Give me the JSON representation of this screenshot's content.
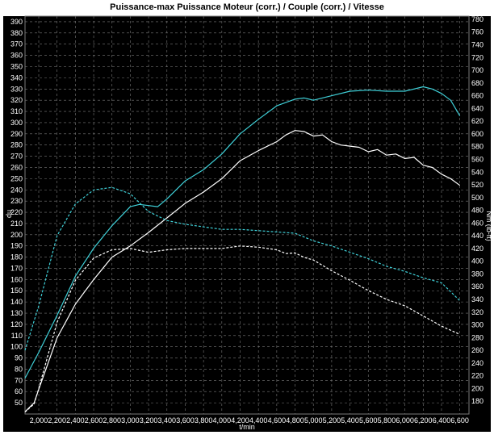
{
  "chart_data": {
    "type": "line",
    "title": "Puissance-max Puissance Moteur (corr.) / Couple (corr.) / Vitesse",
    "xlabel": "t/min",
    "ylabel_left": "hp",
    "ylabel_right": "Nm (lb-ft)",
    "xlim": [
      1850,
      6700
    ],
    "ylim_left": [
      40,
      395
    ],
    "ylim_right": [
      160,
      785
    ],
    "x_ticks": [
      "2,000",
      "2,200",
      "2,400",
      "2,600",
      "2,800",
      "3,000",
      "3,200",
      "3,400",
      "3,600",
      "3,800",
      "4,000",
      "4,200",
      "4,400",
      "4,600",
      "4,800",
      "5,000",
      "5,200",
      "5,400",
      "5,600",
      "5,800",
      "6,000",
      "6,200",
      "6,400",
      "6,600"
    ],
    "y_ticks_left": [
      50,
      60,
      70,
      80,
      90,
      100,
      110,
      120,
      130,
      140,
      150,
      160,
      170,
      180,
      190,
      200,
      210,
      220,
      230,
      240,
      250,
      260,
      270,
      280,
      290,
      300,
      310,
      320,
      330,
      340,
      350,
      360,
      370,
      380,
      390
    ],
    "y_ticks_right": [
      180,
      200,
      220,
      240,
      260,
      280,
      300,
      320,
      340,
      360,
      380,
      400,
      420,
      440,
      460,
      480,
      500,
      520,
      540,
      560,
      580,
      600,
      620,
      640,
      660,
      680,
      700,
      720,
      740,
      760,
      780
    ],
    "grid": true,
    "colors": {
      "background": "#000000",
      "grid": "#7a7a7a",
      "power_max": "#3fd0d8",
      "power_corr": "#ffffff",
      "text": "#ffffff",
      "page": "#ffffff"
    },
    "series": [
      {
        "axis": "left",
        "color_key": "power_max",
        "dash": "solid",
        "x": [
          1850,
          2000,
          2200,
          2400,
          2600,
          2800,
          3000,
          3100,
          3200,
          3300,
          3400,
          3600,
          3800,
          4000,
          4200,
          4400,
          4600,
          4800,
          4900,
          5000,
          5200,
          5400,
          5600,
          5800,
          6000,
          6200,
          6300,
          6400,
          6500,
          6600
        ],
        "values": [
          72,
          95,
          128,
          163,
          188,
          208,
          225,
          227,
          226,
          225,
          232,
          248,
          258,
          272,
          290,
          303,
          315,
          321,
          322,
          320,
          324,
          328,
          329,
          328,
          328,
          332,
          330,
          326,
          320,
          306
        ]
      },
      {
        "axis": "left",
        "color_key": "power_corr",
        "dash": "solid",
        "x": [
          1850,
          1950,
          2000,
          2200,
          2400,
          2600,
          2800,
          3000,
          3200,
          3400,
          3600,
          3800,
          4000,
          4200,
          4400,
          4600,
          4700,
          4800,
          4900,
          5000,
          5100,
          5200,
          5300,
          5400,
          5500,
          5600,
          5700,
          5800,
          5900,
          6000,
          6100,
          6200,
          6300,
          6400,
          6500,
          6600
        ],
        "values": [
          42,
          50,
          62,
          108,
          138,
          160,
          180,
          190,
          202,
          215,
          228,
          238,
          250,
          266,
          275,
          283,
          289,
          293,
          292,
          288,
          289,
          283,
          280,
          279,
          278,
          274,
          276,
          271,
          272,
          268,
          269,
          262,
          260,
          254,
          250,
          244
        ]
      },
      {
        "axis": "right",
        "color_key": "power_max",
        "dash": "dashed",
        "x": [
          1850,
          2000,
          2200,
          2400,
          2600,
          2800,
          3000,
          3200,
          3400,
          3600,
          3800,
          4000,
          4200,
          4400,
          4600,
          4800,
          5000,
          5200,
          5400,
          5600,
          5800,
          6000,
          6200,
          6400,
          6600
        ],
        "values": [
          260,
          330,
          440,
          490,
          512,
          516,
          506,
          478,
          464,
          458,
          454,
          450,
          450,
          448,
          446,
          444,
          432,
          424,
          414,
          404,
          392,
          384,
          374,
          366,
          338
        ]
      },
      {
        "axis": "right",
        "color_key": "power_corr",
        "dash": "dashed",
        "x": [
          1850,
          1950,
          2000,
          2200,
          2400,
          2600,
          2800,
          3000,
          3200,
          3400,
          3600,
          3800,
          4000,
          4200,
          4400,
          4600,
          4700,
          4800,
          4900,
          5000,
          5200,
          5400,
          5600,
          5800,
          6000,
          6200,
          6400,
          6600
        ],
        "values": [
          163,
          176,
          200,
          304,
          370,
          405,
          418,
          420,
          414,
          418,
          420,
          420,
          420,
          424,
          422,
          418,
          412,
          413,
          406,
          402,
          385,
          370,
          354,
          340,
          330,
          314,
          298,
          285
        ]
      }
    ]
  }
}
